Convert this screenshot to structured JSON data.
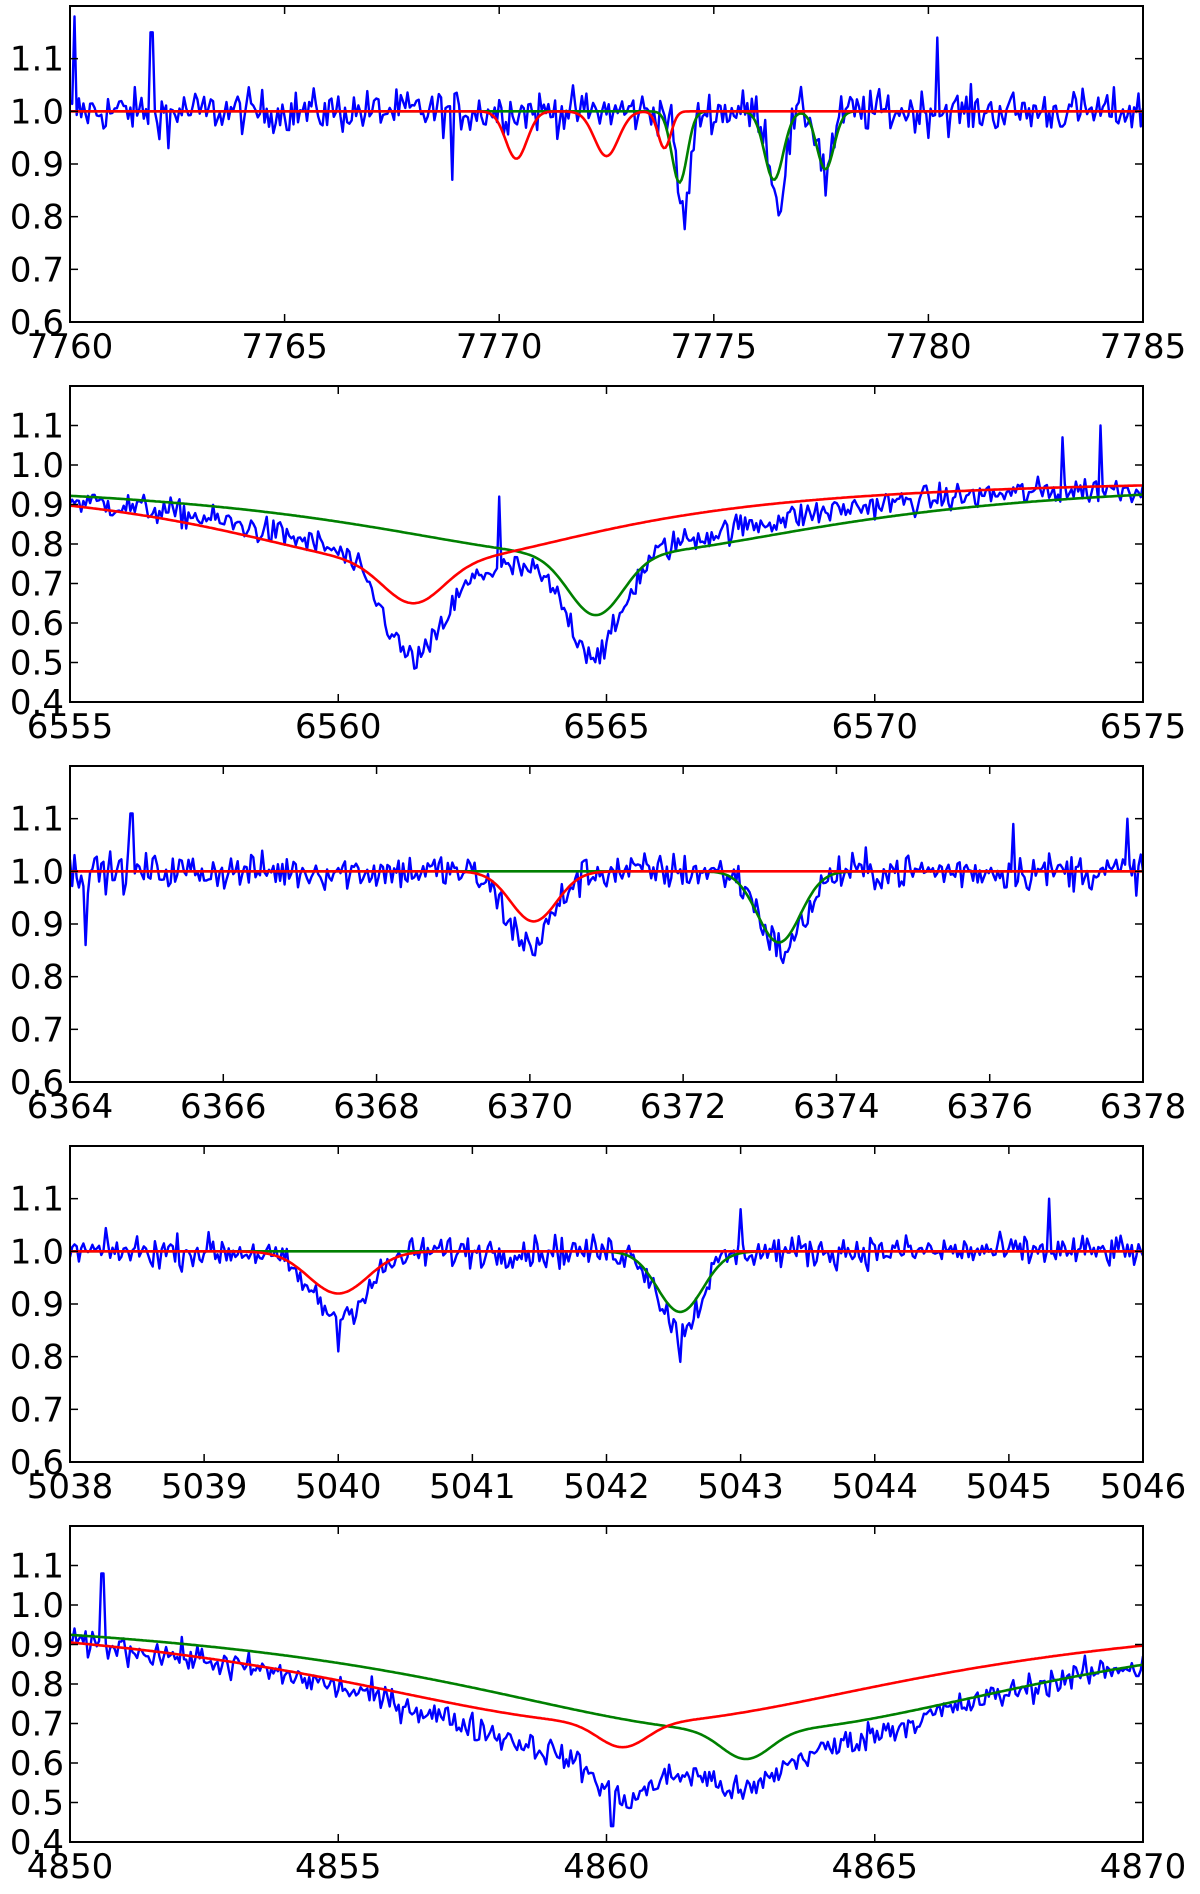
{
  "chart_data": [
    {
      "type": "line",
      "xlim": [
        7760,
        7785
      ],
      "ylim": [
        0.6,
        1.2
      ],
      "xticks": [
        7760,
        7765,
        7770,
        7775,
        7780,
        7785
      ],
      "xtick_labels": [
        "7760",
        "7765",
        "7770",
        "7775",
        "7780",
        "7785"
      ],
      "yticks": [
        0.6,
        0.7,
        0.8,
        0.9,
        1.0,
        1.1
      ],
      "ytick_labels": [
        "0.6",
        "0.7",
        "0.8",
        "0.9",
        "1.0",
        "1.1"
      ],
      "grid": false,
      "continuum": {
        "a": 1.0,
        "b": 0.0
      },
      "noise": 0.04,
      "spikes": [
        [
          7760.1,
          1.18
        ],
        [
          7761.9,
          1.15
        ],
        [
          7780.2,
          1.14
        ],
        [
          7768.9,
          0.87
        ],
        [
          7777.6,
          0.84
        ],
        [
          7762.3,
          0.93
        ]
      ],
      "models": [
        {
          "color": "#ff0000",
          "lines": [
            [
              7770.4,
              0.09,
              0.25
            ],
            [
              7772.5,
              0.085,
              0.28
            ],
            [
              7773.85,
              0.07,
              0.15
            ]
          ]
        },
        {
          "color": "#008000",
          "lines": [
            [
              7774.2,
              0.135,
              0.18
            ],
            [
              7776.4,
              0.13,
              0.22
            ],
            [
              7777.6,
              0.11,
              0.2
            ]
          ]
        }
      ],
      "observed": {
        "color": "#0000ff",
        "lines": [
          [
            7774.3,
            0.2,
            0.15
          ],
          [
            7776.5,
            0.17,
            0.18
          ],
          [
            7777.6,
            0.1,
            0.18
          ]
        ]
      }
    },
    {
      "type": "line",
      "xlim": [
        6555,
        6575
      ],
      "ylim": [
        0.4,
        1.2
      ],
      "xticks": [
        6555,
        6560,
        6565,
        6570,
        6575
      ],
      "xtick_labels": [
        "6555",
        "6560",
        "6565",
        "6570",
        "6575"
      ],
      "yticks": [
        0.4,
        0.5,
        0.6,
        0.7,
        0.8,
        0.9,
        1.0,
        1.1
      ],
      "ytick_labels": [
        "0.4",
        "0.5",
        "0.6",
        "0.7",
        "0.8",
        "0.9",
        "1.0",
        "1.1"
      ],
      "grid": false,
      "continuum": {
        "a": 0.97,
        "b": 0.0
      },
      "noise": 0.035,
      "spikes": [
        [
          6563.0,
          0.92
        ],
        [
          6574.2,
          1.1
        ],
        [
          6573.5,
          1.07
        ]
      ],
      "models": [
        {
          "color": "#ff0000",
          "lines": [],
          "wings": {
            "center": 6561.4,
            "depth": 0.22,
            "width": 9.0
          },
          "core": [
            6561.4,
            0.1,
            0.55
          ]
        },
        {
          "color": "#008000",
          "lines": [],
          "wings": {
            "center": 6564.8,
            "depth": 0.2,
            "width": 11.0
          },
          "core": [
            6564.8,
            0.15,
            0.5
          ]
        }
      ],
      "observed": {
        "color": "#0000ff",
        "lines": [],
        "wings": [
          {
            "center": 6561.4,
            "depth": 0.15,
            "width": 8.0
          },
          {
            "center": 6564.8,
            "depth": 0.12,
            "width": 8.0
          }
        ],
        "core": [
          [
            6561.4,
            0.24,
            0.55
          ],
          [
            6564.8,
            0.24,
            0.5
          ]
        ]
      }
    },
    {
      "type": "line",
      "xlim": [
        6364,
        6378
      ],
      "ylim": [
        0.6,
        1.2
      ],
      "xticks": [
        6364,
        6366,
        6368,
        6370,
        6372,
        6374,
        6376,
        6378
      ],
      "xtick_labels": [
        "6364",
        "6366",
        "6368",
        "6370",
        "6372",
        "6374",
        "6376",
        "6378"
      ],
      "yticks": [
        0.6,
        0.7,
        0.8,
        0.9,
        1.0,
        1.1
      ],
      "ytick_labels": [
        "0.6",
        "0.7",
        "0.8",
        "0.9",
        "1.0",
        "1.1"
      ],
      "grid": false,
      "continuum": {
        "a": 1.0,
        "b": 0.0
      },
      "noise": 0.035,
      "spikes": [
        [
          6364.2,
          0.86
        ],
        [
          6364.8,
          1.11
        ],
        [
          6377.8,
          1.1
        ],
        [
          6376.3,
          1.09
        ]
      ],
      "models": [
        {
          "color": "#ff0000",
          "lines": [
            [
              6370.05,
              0.095,
              0.3
            ]
          ]
        },
        {
          "color": "#008000",
          "lines": [
            [
              6373.25,
              0.135,
              0.28
            ]
          ]
        }
      ],
      "observed": {
        "color": "#0000ff",
        "lines": [
          [
            6370.0,
            0.14,
            0.3
          ],
          [
            6373.3,
            0.15,
            0.28
          ]
        ]
      }
    },
    {
      "type": "line",
      "xlim": [
        5038,
        5046
      ],
      "ylim": [
        0.6,
        1.2
      ],
      "xticks": [
        5038,
        5039,
        5040,
        5041,
        5042,
        5043,
        5044,
        5045,
        5046
      ],
      "xtick_labels": [
        "5038",
        "5039",
        "5040",
        "5041",
        "5042",
        "5043",
        "5044",
        "5045",
        "5046"
      ],
      "yticks": [
        0.6,
        0.7,
        0.8,
        0.9,
        1.0,
        1.1
      ],
      "ytick_labels": [
        "0.6",
        "0.7",
        "0.8",
        "0.9",
        "1.0",
        "1.1"
      ],
      "grid": false,
      "continuum": {
        "a": 1.0,
        "b": 0.0
      },
      "noise": 0.03,
      "spikes": [
        [
          5040.0,
          0.81
        ],
        [
          5042.55,
          0.79
        ],
        [
          5045.3,
          1.1
        ],
        [
          5043.0,
          1.08
        ]
      ],
      "models": [
        {
          "color": "#ff0000",
          "lines": [
            [
              5040.0,
              0.08,
              0.22
            ]
          ]
        },
        {
          "color": "#008000",
          "lines": [
            [
              5042.55,
              0.115,
              0.17
            ]
          ]
        }
      ],
      "observed": {
        "color": "#0000ff",
        "lines": [
          [
            5040.0,
            0.12,
            0.22
          ],
          [
            5042.55,
            0.15,
            0.15
          ]
        ]
      }
    },
    {
      "type": "line",
      "xlim": [
        4850,
        4870
      ],
      "ylim": [
        0.4,
        1.2
      ],
      "xticks": [
        4850,
        4855,
        4860,
        4865,
        4870
      ],
      "xtick_labels": [
        "4850",
        "4855",
        "4860",
        "4865",
        "4870"
      ],
      "yticks": [
        0.4,
        0.5,
        0.6,
        0.7,
        0.8,
        0.9,
        1.0,
        1.1
      ],
      "ytick_labels": [
        "0.4",
        "0.5",
        "0.6",
        "0.7",
        "0.8",
        "0.9",
        "1.0",
        "1.1"
      ],
      "grid": false,
      "continuum": {
        "a": 1.0,
        "b": 0.0
      },
      "noise": 0.035,
      "spikes": [
        [
          4853.0,
          0.81
        ],
        [
          4860.1,
          0.44
        ],
        [
          4869.9,
          0.82
        ],
        [
          4850.6,
          1.08
        ]
      ],
      "models": [
        {
          "color": "#ff0000",
          "lines": [],
          "wings": {
            "center": 4860.3,
            "depth": 0.3,
            "width": 14.0
          },
          "core": [
            4860.3,
            0.06,
            0.45
          ]
        },
        {
          "color": "#008000",
          "lines": [],
          "wings": {
            "center": 4862.6,
            "depth": 0.32,
            "width": 14.0
          },
          "core": [
            4862.6,
            0.07,
            0.45
          ]
        }
      ],
      "observed": {
        "color": "#0000ff",
        "lines": [],
        "wings": [
          {
            "center": 4860.3,
            "depth": 0.22,
            "width": 12.0
          },
          {
            "center": 4862.6,
            "depth": 0.22,
            "width": 12.0
          }
        ],
        "core": [
          [
            4860.3,
            0.08,
            0.45
          ],
          [
            4862.6,
            0.06,
            0.45
          ]
        ]
      }
    }
  ]
}
